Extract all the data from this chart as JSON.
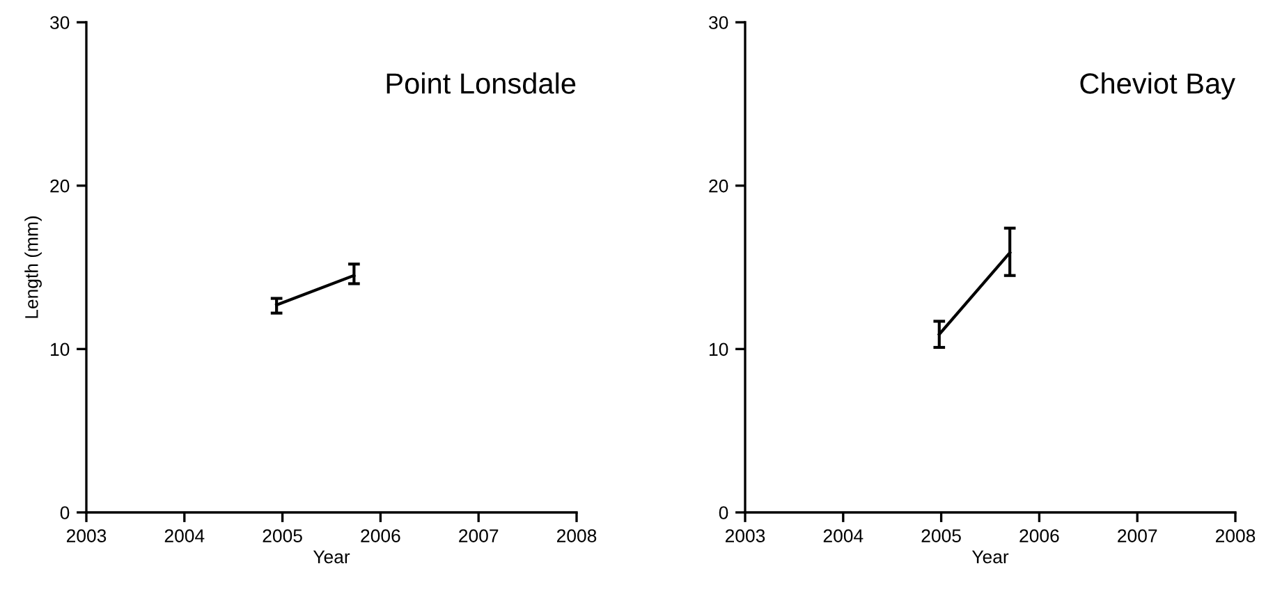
{
  "chart_data": [
    {
      "type": "line",
      "title": "Point Lonsdale",
      "xlabel": "Year",
      "ylabel": "Length (mm)",
      "xlim": [
        2003,
        2008
      ],
      "xticks": [
        2003,
        2004,
        2005,
        2006,
        2007,
        2008
      ],
      "ylim": [
        0,
        30
      ],
      "yticks": [
        0,
        10,
        20,
        30
      ],
      "grid": false,
      "marker": "none",
      "line_style": "solid",
      "series": [
        {
          "color": "#000000",
          "x": [
            2004.94,
            2005.73
          ],
          "values": [
            12.7,
            14.5
          ],
          "errors": [
            [
              12.2,
              13.1
            ],
            [
              14.0,
              15.2
            ]
          ]
        }
      ]
    },
    {
      "type": "line",
      "title": "Cheviot Bay",
      "xlabel": "Year",
      "xlim": [
        2003,
        2008
      ],
      "xticks": [
        2003,
        2004,
        2005,
        2006,
        2007,
        2008
      ],
      "ylim": [
        0,
        30
      ],
      "yticks": [
        0,
        10,
        20,
        30
      ],
      "grid": false,
      "marker": "none",
      "line_style": "solid",
      "series": [
        {
          "color": "#000000",
          "x": [
            2004.98,
            2005.7
          ],
          "values": [
            10.9,
            15.9
          ],
          "errors": [
            [
              10.1,
              11.7
            ],
            [
              14.5,
              17.4
            ]
          ]
        }
      ]
    }
  ]
}
